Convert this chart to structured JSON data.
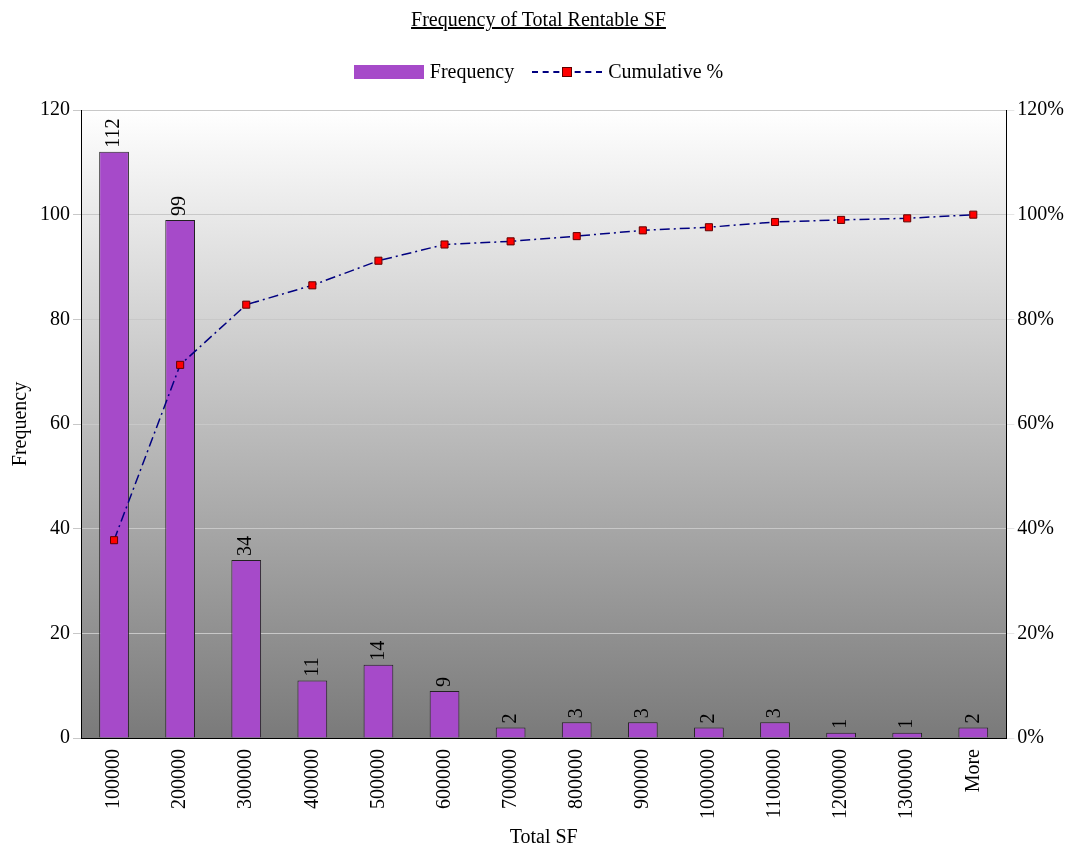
{
  "chart_data": {
    "type": "bar",
    "title": "Frequency of Total Rentable SF",
    "xlabel": "Total SF",
    "ylabel": "Frequency",
    "categories": [
      "100000",
      "200000",
      "300000",
      "400000",
      "500000",
      "600000",
      "700000",
      "800000",
      "900000",
      "1000000",
      "1100000",
      "1200000",
      "1300000",
      "More"
    ],
    "series": [
      {
        "name": "Frequency",
        "color": "#a64ac9",
        "values": [
          112,
          99,
          34,
          11,
          14,
          9,
          2,
          3,
          3,
          2,
          3,
          1,
          1,
          2
        ],
        "value_labels": [
          "112",
          "99",
          "34",
          "11",
          "14",
          "9",
          "2",
          "3",
          "3",
          "2",
          "3",
          "1",
          "1",
          "2"
        ]
      },
      {
        "name": "Cumulative %",
        "type": "line",
        "axis": "y2",
        "color": "#000080",
        "marker": "square",
        "line_style": "dashed",
        "values": [
          37.8,
          71.3,
          82.8,
          86.5,
          91.2,
          94.3,
          94.9,
          95.9,
          97.0,
          97.6,
          98.6,
          99.0,
          99.3,
          100
        ]
      }
    ],
    "ylim": [
      0,
      120
    ],
    "yticks": [
      0,
      20,
      40,
      60,
      80,
      100,
      120
    ],
    "y2lim": [
      0,
      120
    ],
    "y2ticks": [
      {
        "value": 0,
        "label": "0%"
      },
      {
        "value": 20,
        "label": "20%"
      },
      {
        "value": 40,
        "label": "40%"
      },
      {
        "value": 60,
        "label": "60%"
      },
      {
        "value": 80,
        "label": "80%"
      },
      {
        "value": 100,
        "label": "100%"
      },
      {
        "value": 120,
        "label": "120%"
      }
    ],
    "grid": "y",
    "legend": "top"
  }
}
